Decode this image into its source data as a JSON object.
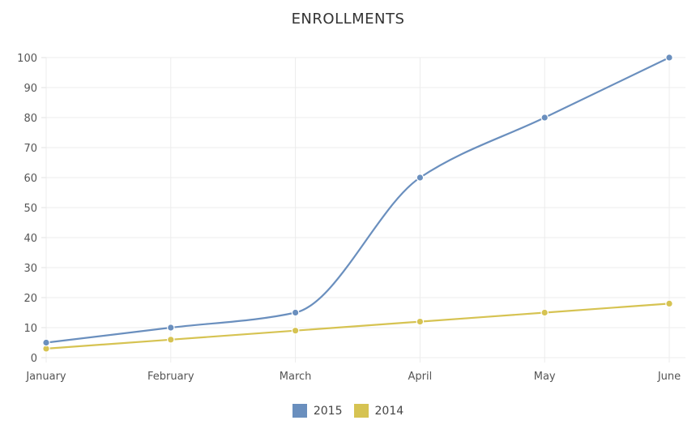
{
  "chart_data": {
    "type": "line",
    "title": "ENROLLMENTS",
    "categories": [
      "January",
      "February",
      "March",
      "April",
      "May",
      "June"
    ],
    "series": [
      {
        "name": "2015",
        "color": "#6a8fbe",
        "values": [
          5,
          10,
          15,
          60,
          80,
          100
        ]
      },
      {
        "name": "2014",
        "color": "#d6c352",
        "values": [
          3,
          6,
          9,
          12,
          15,
          18
        ]
      }
    ],
    "ylim": [
      0,
      100
    ],
    "yticks": [
      0,
      10,
      20,
      30,
      40,
      50,
      60,
      70,
      80,
      90,
      100
    ],
    "grid": true,
    "legend_position": "bottom-center"
  }
}
